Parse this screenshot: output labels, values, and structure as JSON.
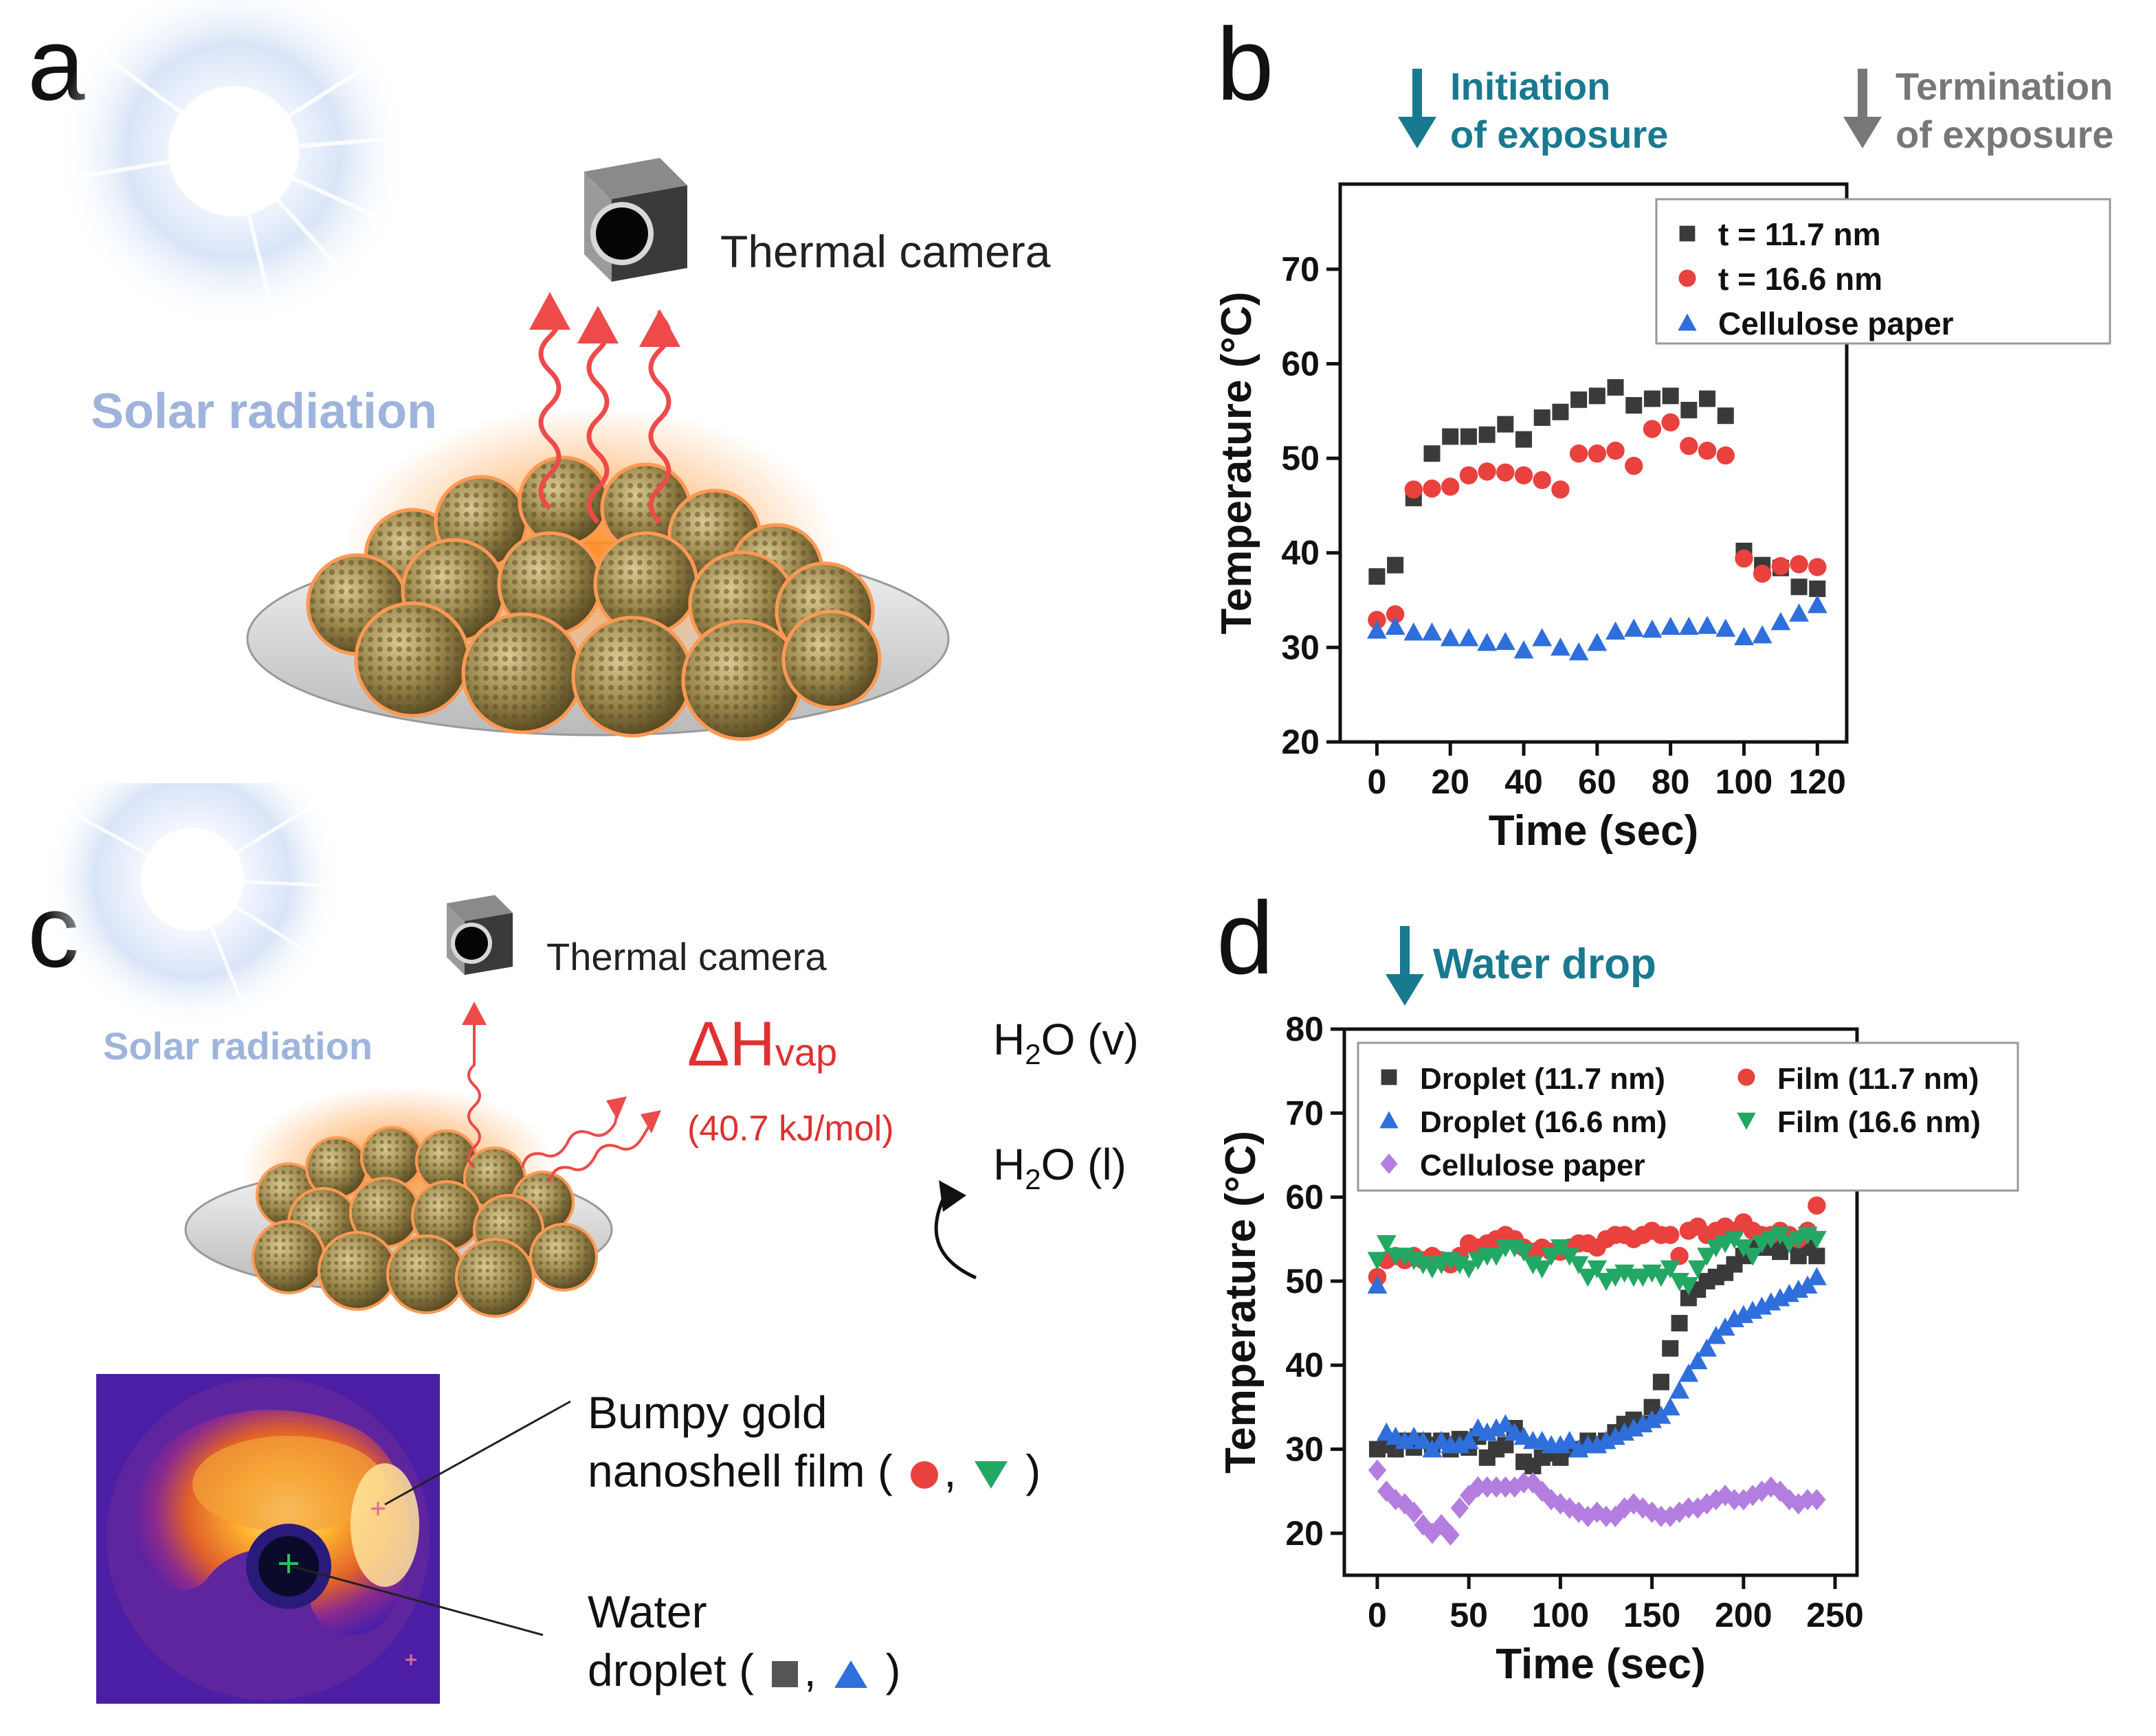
{
  "panel_a": {
    "label": "a",
    "camera_label": "Thermal camera",
    "solar_label": "Solar radiation"
  },
  "panel_b": {
    "label": "b",
    "initiation_line1": "Initiation",
    "initiation_line2": "of exposure",
    "termination_line1": "Termination",
    "termination_line2": "of exposure"
  },
  "panel_c": {
    "label": "c",
    "camera_label": "Thermal camera",
    "solar_label": "Solar radiation",
    "dh_main": "ΔH",
    "dh_sub": "vap",
    "dh_value": "(40.7 kJ/mol)",
    "h2o_v": "(v)",
    "h2o_l": "(l)",
    "h2o_prefix": "H",
    "h2o_two": "2",
    "h2o_o": "O",
    "film_line1": "Bumpy gold",
    "film_line2": "nanoshell film (",
    "film_close": ")",
    "droplet_line1": "Water",
    "droplet_line2": "droplet (",
    "droplet_close": ")",
    "comma": ","
  },
  "panel_d": {
    "label": "d",
    "water_drop": "Water drop"
  },
  "colors": {
    "black_series": "#3a3a3a",
    "red_series": "#e8413e",
    "blue_series": "#2f6fdc",
    "green_series": "#22a864",
    "purple_series": "#b37ee0",
    "teal_arrow": "#19798f",
    "gray_arrow": "#777777",
    "solar_text": "#9fb4dc",
    "dh_red": "#e03030"
  },
  "chart_data": [
    {
      "type": "scatter",
      "panel": "b",
      "xlabel": "Time (sec)",
      "ylabel": "Temperature (°C)",
      "xlim": [
        -10,
        128
      ],
      "ylim": [
        20,
        79
      ],
      "xticks": [
        0,
        20,
        40,
        60,
        80,
        100,
        120
      ],
      "yticks": [
        20,
        30,
        40,
        50,
        60,
        70
      ],
      "legend_position": "top-right",
      "series": [
        {
          "name": "t = 11.7 nm",
          "marker": "square",
          "color": "#3a3a3a",
          "x": [
            0,
            5,
            10,
            15,
            20,
            25,
            30,
            35,
            40,
            45,
            50,
            55,
            60,
            65,
            70,
            75,
            80,
            85,
            90,
            95,
            100,
            105,
            110,
            115,
            120
          ],
          "y": [
            37.5,
            38.7,
            45.8,
            50.5,
            52.3,
            52.3,
            52.5,
            53.6,
            52.0,
            54.3,
            54.9,
            56.2,
            56.6,
            57.5,
            55.6,
            56.3,
            56.6,
            55.1,
            56.3,
            54.5,
            40.2,
            38.7,
            38.4,
            36.4,
            36.2
          ]
        },
        {
          "name": "t = 16.6 nm",
          "marker": "circle",
          "color": "#e8413e",
          "x": [
            0,
            5,
            10,
            15,
            20,
            25,
            30,
            35,
            40,
            45,
            50,
            55,
            60,
            65,
            70,
            75,
            80,
            85,
            90,
            95,
            100,
            105,
            110,
            115,
            120
          ],
          "y": [
            32.9,
            33.5,
            46.7,
            46.8,
            47.0,
            48.2,
            48.6,
            48.5,
            48.2,
            47.7,
            46.7,
            50.5,
            50.5,
            50.8,
            49.2,
            53.1,
            53.8,
            51.3,
            50.8,
            50.3,
            39.4,
            37.8,
            38.6,
            38.8,
            38.5
          ]
        },
        {
          "name": "Cellulose paper",
          "marker": "triangle-up",
          "color": "#2f6fdc",
          "x": [
            0,
            5,
            10,
            15,
            20,
            25,
            30,
            35,
            40,
            45,
            50,
            55,
            60,
            65,
            70,
            75,
            80,
            85,
            90,
            95,
            100,
            105,
            110,
            115,
            120
          ],
          "y": [
            31.8,
            32.2,
            31.6,
            31.6,
            31.0,
            31.0,
            30.5,
            30.6,
            29.7,
            31.0,
            30.0,
            29.5,
            30.5,
            31.7,
            32.0,
            31.9,
            32.2,
            32.2,
            32.3,
            32.0,
            31.1,
            31.3,
            32.7,
            33.6,
            34.5
          ]
        }
      ]
    },
    {
      "type": "scatter",
      "panel": "d",
      "xlabel": "Time (sec)",
      "ylabel": "Temperature (°C)",
      "xlim": [
        -18,
        262
      ],
      "ylim": [
        15,
        80
      ],
      "xticks": [
        0,
        50,
        100,
        150,
        200,
        250
      ],
      "yticks": [
        20,
        30,
        40,
        50,
        60,
        70,
        80
      ],
      "legend_position": "top",
      "series": [
        {
          "name": "Droplet (11.7 nm)",
          "marker": "square",
          "color": "#3a3a3a",
          "x": [
            0,
            5,
            10,
            15,
            20,
            25,
            30,
            35,
            40,
            45,
            50,
            55,
            60,
            65,
            70,
            75,
            80,
            85,
            90,
            95,
            100,
            105,
            110,
            115,
            120,
            125,
            130,
            135,
            140,
            145,
            150,
            155,
            160,
            165,
            170,
            175,
            180,
            185,
            190,
            195,
            200,
            205,
            210,
            215,
            220,
            225,
            230,
            235,
            240
          ],
          "y": [
            30,
            30.5,
            30,
            31,
            30.2,
            31,
            30.5,
            31,
            30,
            31.2,
            30.2,
            31.5,
            29,
            30,
            30.5,
            32.5,
            28.5,
            28,
            29,
            29.5,
            29,
            30,
            30,
            31,
            30.5,
            31,
            32,
            33,
            33.5,
            33,
            35,
            38,
            42,
            45,
            48,
            49,
            50,
            50.5,
            51,
            52,
            53,
            54,
            54,
            54,
            53.5,
            54.5,
            53,
            54,
            53
          ]
        },
        {
          "name": "Film (11.7 nm)",
          "marker": "circle",
          "color": "#e8413e",
          "x": [
            0,
            5,
            10,
            15,
            20,
            25,
            30,
            35,
            40,
            45,
            50,
            55,
            60,
            65,
            70,
            75,
            80,
            85,
            90,
            95,
            100,
            105,
            110,
            115,
            120,
            125,
            130,
            135,
            140,
            145,
            150,
            155,
            160,
            165,
            170,
            175,
            180,
            185,
            190,
            195,
            200,
            205,
            210,
            215,
            220,
            225,
            230,
            235,
            240
          ],
          "y": [
            50.5,
            52.5,
            53,
            52.5,
            53,
            52.5,
            53,
            52.5,
            52,
            53,
            54.5,
            54,
            54.5,
            55,
            55.5,
            55,
            54,
            53.5,
            54,
            53.5,
            53.5,
            54,
            54.5,
            54.5,
            54,
            55,
            55.5,
            55.5,
            55,
            55.5,
            56,
            55.5,
            55.5,
            53,
            56,
            56.5,
            55.5,
            56,
            56.5,
            56,
            57,
            56,
            55.5,
            55.5,
            56,
            55.5,
            55,
            56,
            59
          ]
        },
        {
          "name": "Droplet (16.6 nm)",
          "marker": "triangle-up",
          "color": "#2f6fdc",
          "x": [
            0,
            5,
            10,
            15,
            20,
            25,
            30,
            35,
            40,
            45,
            50,
            55,
            60,
            65,
            70,
            75,
            80,
            85,
            90,
            95,
            100,
            105,
            110,
            115,
            120,
            125,
            130,
            135,
            140,
            145,
            150,
            155,
            160,
            165,
            170,
            175,
            180,
            185,
            190,
            195,
            200,
            205,
            210,
            215,
            220,
            225,
            230,
            235,
            240
          ],
          "y": [
            49.5,
            32,
            31.5,
            31,
            31.5,
            31,
            30,
            31,
            30.5,
            30.5,
            31,
            32.5,
            32,
            32.5,
            33,
            32,
            31.5,
            31,
            31,
            30.5,
            30.5,
            31,
            30,
            30.5,
            30.5,
            31,
            31.5,
            32,
            32.5,
            33,
            33.5,
            34,
            35,
            37,
            39,
            40.5,
            42,
            43.5,
            44.5,
            45.5,
            46,
            46.5,
            47,
            47.5,
            48,
            48.5,
            49,
            49.5,
            50.5
          ]
        },
        {
          "name": "Film (16.6 nm)",
          "marker": "triangle-down",
          "color": "#22a864",
          "x": [
            0,
            5,
            10,
            15,
            20,
            25,
            30,
            35,
            40,
            45,
            50,
            55,
            60,
            65,
            70,
            75,
            80,
            85,
            90,
            95,
            100,
            105,
            110,
            115,
            120,
            125,
            130,
            135,
            140,
            145,
            150,
            155,
            160,
            165,
            170,
            175,
            180,
            185,
            190,
            195,
            200,
            205,
            210,
            215,
            220,
            225,
            230,
            235,
            240
          ],
          "y": [
            52.5,
            54.5,
            53,
            53,
            52.5,
            52,
            51.5,
            52,
            52.5,
            52,
            51.5,
            52.5,
            53,
            53,
            54,
            54,
            53.5,
            52,
            51.5,
            53,
            54,
            53,
            52,
            50.5,
            51.5,
            50,
            50.5,
            51,
            50.5,
            50.5,
            51,
            50.5,
            51.5,
            50,
            49.5,
            51.5,
            53,
            54,
            54.5,
            55,
            54,
            53,
            54.5,
            55,
            55.5,
            54.5,
            55,
            55.5,
            55
          ]
        },
        {
          "name": "Cellulose paper",
          "marker": "diamond",
          "color": "#b37ee0",
          "x": [
            0,
            5,
            10,
            15,
            20,
            25,
            30,
            35,
            40,
            45,
            50,
            55,
            60,
            65,
            70,
            75,
            80,
            85,
            90,
            95,
            100,
            105,
            110,
            115,
            120,
            125,
            130,
            135,
            140,
            145,
            150,
            155,
            160,
            165,
            170,
            175,
            180,
            185,
            190,
            195,
            200,
            205,
            210,
            215,
            220,
            225,
            230,
            235,
            240
          ],
          "y": [
            27.5,
            25,
            24,
            23.5,
            22.5,
            21,
            20,
            21,
            19.8,
            23,
            24.5,
            25.5,
            25.5,
            25.5,
            25.5,
            25.5,
            26,
            26,
            25,
            24,
            23.5,
            23,
            22.5,
            22,
            22.5,
            22,
            22,
            23,
            23.5,
            23,
            22.5,
            22,
            22,
            22.5,
            23,
            23,
            23.5,
            24,
            24.5,
            24,
            24,
            24.5,
            25,
            25.5,
            25,
            24,
            23.5,
            24,
            24
          ]
        }
      ]
    }
  ]
}
